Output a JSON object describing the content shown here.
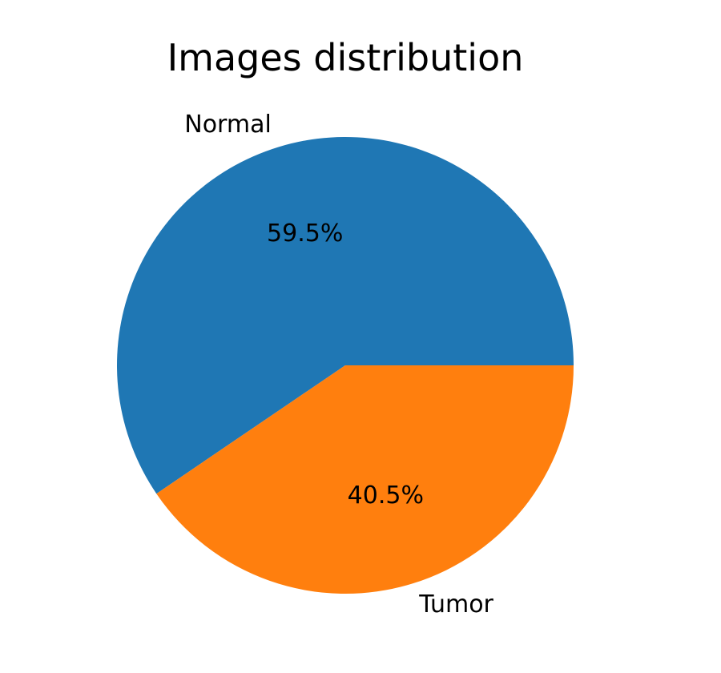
{
  "chart_data": {
    "type": "pie",
    "title": "Images distribution",
    "slices": [
      {
        "label": "Normal",
        "value": 59.5,
        "pct_label": "59.5%",
        "color": "#1f77b4"
      },
      {
        "label": "Tumor",
        "value": 40.5,
        "pct_label": "40.5%",
        "color": "#ff7f0e"
      }
    ],
    "start_angle": "0deg (3 o'clock)",
    "direction": "counterclockwise",
    "legend": "none"
  }
}
